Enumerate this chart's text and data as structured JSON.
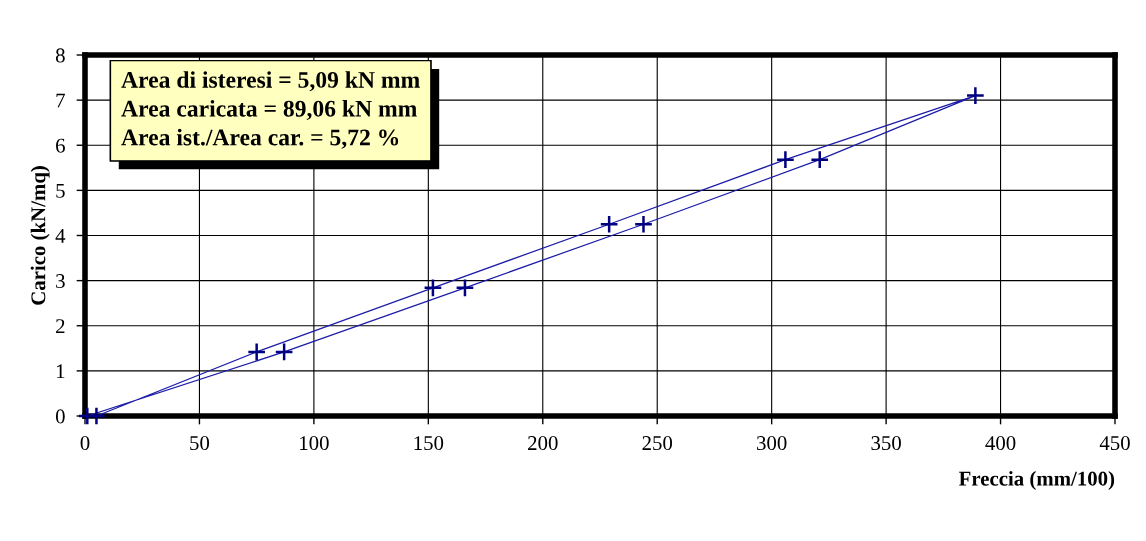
{
  "chart_data": {
    "type": "line",
    "xlabel": "Freccia (mm/100)",
    "ylabel": "Carico (kN/mq)",
    "annotations": [
      "Area di isteresi = 5,09 kN mm",
      "Area caricata = 89,06 kN mm",
      "Area ist./Area car. = 5,72 %"
    ],
    "series": [
      {
        "color": "#1c1ca8",
        "x": [
          1,
          87,
          166,
          244,
          321,
          389,
          306,
          229,
          152,
          75,
          5
        ],
        "values": [
          0,
          1.42,
          2.84,
          4.25,
          5.68,
          7.1,
          5.68,
          4.25,
          2.84,
          1.42,
          0
        ]
      }
    ],
    "marker": "cross",
    "line_style": "solid",
    "grid": true,
    "legend": false,
    "xlim": [
      0,
      450
    ],
    "xticks": [
      0,
      50,
      100,
      150,
      200,
      250,
      300,
      350,
      400,
      450
    ],
    "ylim": [
      0,
      8
    ],
    "yticks": [
      0,
      1,
      2,
      3,
      4,
      5,
      6,
      7,
      8
    ]
  }
}
